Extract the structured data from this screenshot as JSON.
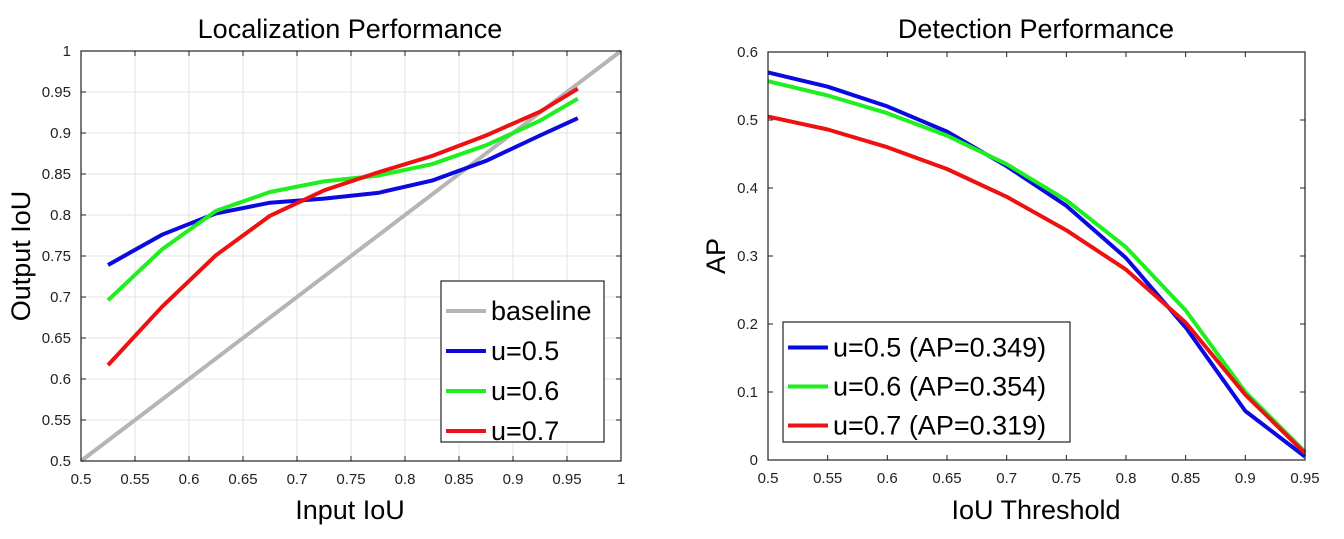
{
  "chart_data": [
    {
      "type": "line",
      "title": "Localization Performance",
      "xlabel": "Input IoU",
      "ylabel": "Output IoU",
      "xlim": [
        0.5,
        1
      ],
      "ylim": [
        0.5,
        1
      ],
      "xticks": [
        "0.5",
        "0.55",
        "0.6",
        "0.65",
        "0.7",
        "0.75",
        "0.8",
        "0.85",
        "0.9",
        "0.95",
        "1"
      ],
      "yticks": [
        "0.5",
        "0.55",
        "0.6",
        "0.65",
        "0.7",
        "0.75",
        "0.8",
        "0.85",
        "0.9",
        "0.95",
        "1"
      ],
      "grid": true,
      "legend_position": "bottom-right",
      "series": [
        {
          "name": "baseline",
          "color": "#b5b5b5",
          "x": [
            0.5,
            1.0
          ],
          "y": [
            0.5,
            1.0
          ]
        },
        {
          "name": "u=0.5",
          "color": "#0a0ae0",
          "x": [
            0.525,
            0.575,
            0.625,
            0.675,
            0.725,
            0.775,
            0.825,
            0.875,
            0.925,
            0.96
          ],
          "y": [
            0.739,
            0.776,
            0.802,
            0.815,
            0.82,
            0.827,
            0.842,
            0.866,
            0.897,
            0.918
          ]
        },
        {
          "name": "u=0.6",
          "color": "#1fee1f",
          "x": [
            0.525,
            0.575,
            0.625,
            0.675,
            0.725,
            0.775,
            0.825,
            0.875,
            0.925,
            0.96
          ],
          "y": [
            0.696,
            0.758,
            0.805,
            0.828,
            0.841,
            0.848,
            0.862,
            0.885,
            0.915,
            0.942
          ]
        },
        {
          "name": "u=0.7",
          "color": "#ee1111",
          "x": [
            0.525,
            0.575,
            0.625,
            0.675,
            0.725,
            0.775,
            0.825,
            0.875,
            0.925,
            0.96
          ],
          "y": [
            0.617,
            0.688,
            0.751,
            0.799,
            0.83,
            0.852,
            0.872,
            0.897,
            0.926,
            0.954
          ]
        }
      ]
    },
    {
      "type": "line",
      "title": "Detection Performance",
      "xlabel": "IoU Threshold",
      "ylabel": "AP",
      "xlim": [
        0.5,
        0.95
      ],
      "ylim": [
        0,
        0.6
      ],
      "xticks": [
        "0.5",
        "0.55",
        "0.6",
        "0.65",
        "0.7",
        "0.75",
        "0.8",
        "0.85",
        "0.9",
        "0.95"
      ],
      "yticks": [
        "0",
        "0.1",
        "0.2",
        "0.3",
        "0.4",
        "0.5",
        "0.6"
      ],
      "grid": false,
      "legend_position": "bottom-left",
      "series": [
        {
          "name": "u=0.5 (AP=0.349)",
          "color": "#0a0ae0",
          "x": [
            0.5,
            0.55,
            0.6,
            0.65,
            0.7,
            0.75,
            0.8,
            0.85,
            0.9,
            0.95
          ],
          "y": [
            0.57,
            0.549,
            0.52,
            0.483,
            0.432,
            0.374,
            0.297,
            0.195,
            0.072,
            0.005
          ]
        },
        {
          "name": "u=0.6 (AP=0.354)",
          "color": "#1fee1f",
          "x": [
            0.5,
            0.55,
            0.6,
            0.65,
            0.7,
            0.75,
            0.8,
            0.85,
            0.9,
            0.95
          ],
          "y": [
            0.557,
            0.536,
            0.51,
            0.477,
            0.435,
            0.382,
            0.313,
            0.22,
            0.1,
            0.012
          ]
        },
        {
          "name": "u=0.7 (AP=0.319)",
          "color": "#ee1111",
          "x": [
            0.5,
            0.55,
            0.6,
            0.65,
            0.7,
            0.75,
            0.8,
            0.85,
            0.9,
            0.95
          ],
          "y": [
            0.505,
            0.486,
            0.46,
            0.428,
            0.387,
            0.338,
            0.28,
            0.202,
            0.096,
            0.01
          ]
        }
      ]
    }
  ]
}
